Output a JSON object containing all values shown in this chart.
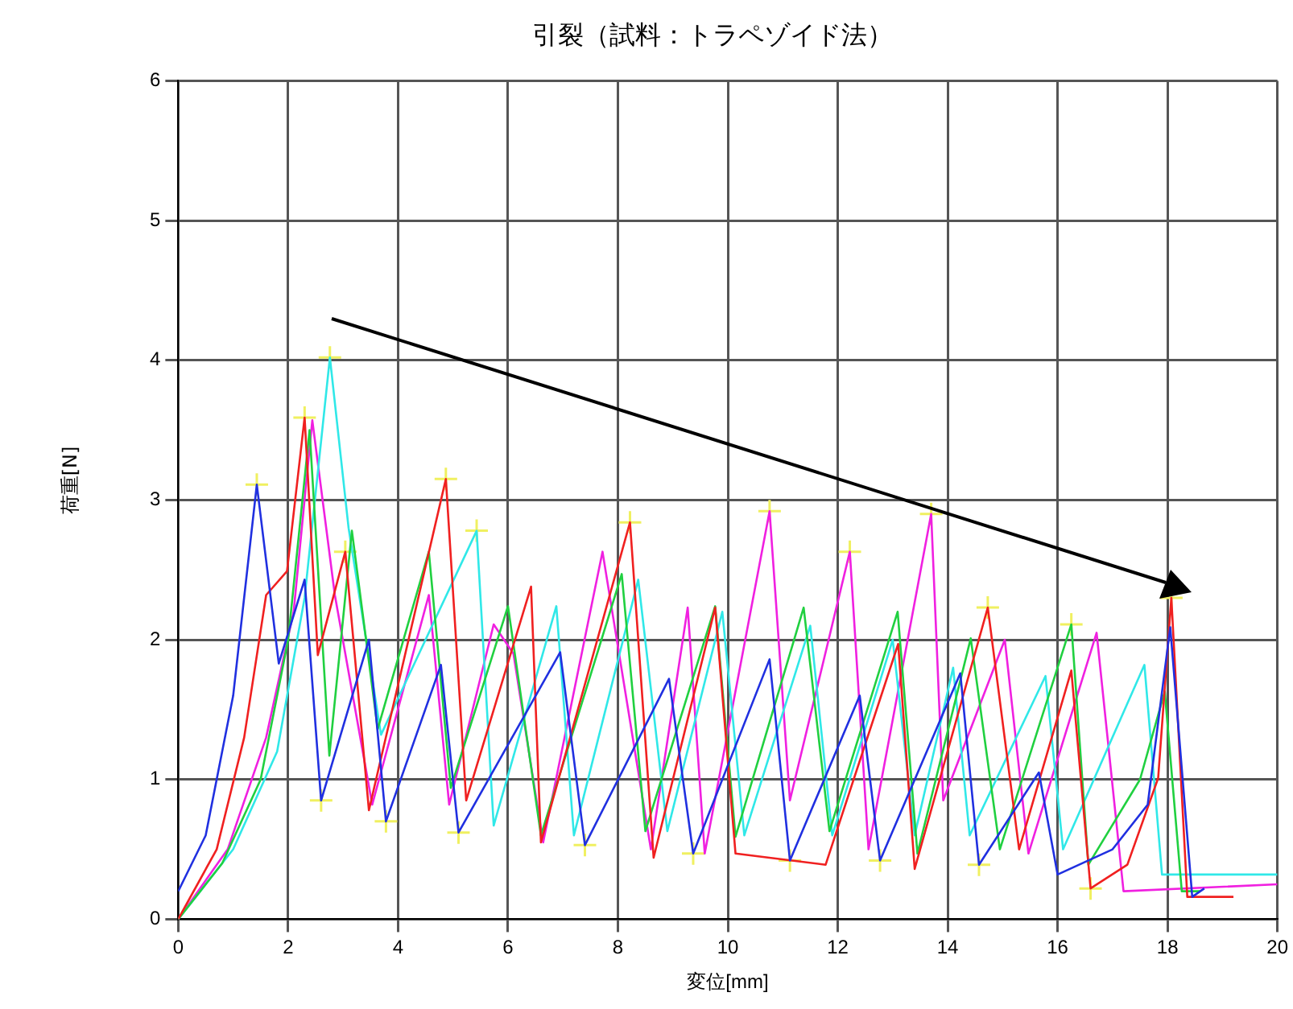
{
  "chart_data": {
    "type": "line",
    "title": "引裂（試料：トラペゾイド法）",
    "xlabel": "変位[mm]",
    "ylabel": "荷重[N]",
    "xlim": [
      0,
      20
    ],
    "xticks": [
      0,
      2,
      4,
      6,
      8,
      10,
      12,
      14,
      16,
      18,
      20
    ],
    "ylim": [
      0,
      6
    ],
    "yticks": [
      0,
      1,
      2,
      3,
      4,
      5,
      6
    ],
    "grid": true,
    "legend": false,
    "marker": "none",
    "line_style": "solid",
    "series": [
      {
        "color": "#2030e0",
        "x": [
          0,
          0.5,
          1.0,
          1.43,
          1.83,
          2.3,
          2.6,
          3.47,
          3.78,
          4.78,
          5.1,
          6.95,
          7.4,
          8.93,
          9.37,
          10.76,
          11.13,
          12.4,
          12.77,
          14.23,
          14.57,
          15.66,
          16.0,
          17.0,
          17.64,
          18.05,
          18.45,
          18.67
        ],
        "values": [
          0.2,
          0.6,
          1.6,
          3.11,
          1.83,
          2.43,
          0.85,
          2.0,
          0.7,
          1.82,
          0.62,
          1.91,
          0.53,
          1.72,
          0.47,
          1.86,
          0.42,
          1.6,
          0.42,
          1.76,
          0.39,
          1.05,
          0.32,
          0.5,
          0.82,
          2.09,
          0.16,
          0.22
        ]
      },
      {
        "color": "#f02020",
        "x": [
          0,
          0.7,
          1.2,
          1.6,
          1.98,
          2.3,
          2.54,
          3.04,
          3.47,
          4.87,
          5.24,
          6.42,
          6.6,
          8.22,
          8.65,
          9.77,
          10.14,
          11.78,
          13.1,
          13.4,
          14.73,
          15.3,
          16.25,
          16.6,
          17.27,
          17.83,
          18.07,
          18.36,
          19.2
        ],
        "values": [
          0,
          0.5,
          1.3,
          2.32,
          2.49,
          3.59,
          1.89,
          2.63,
          0.78,
          3.15,
          0.85,
          2.38,
          0.55,
          2.84,
          0.44,
          2.23,
          0.47,
          0.39,
          1.97,
          0.36,
          2.23,
          0.5,
          1.78,
          0.22,
          0.39,
          1.01,
          2.3,
          0.16,
          0.16
        ]
      },
      {
        "color": "#20d040",
        "x": [
          0,
          0.8,
          1.5,
          2.0,
          2.39,
          2.75,
          3.16,
          3.63,
          4.56,
          4.96,
          6.0,
          6.6,
          8.07,
          8.5,
          9.77,
          10.14,
          11.38,
          11.85,
          13.09,
          13.45,
          14.42,
          14.95,
          16.25,
          16.56,
          17.5,
          17.95,
          18.26,
          18.6
        ],
        "values": [
          0,
          0.4,
          1.0,
          2.0,
          3.5,
          1.17,
          2.78,
          1.36,
          2.63,
          0.94,
          2.24,
          0.6,
          2.47,
          0.63,
          2.24,
          0.59,
          2.23,
          0.63,
          2.2,
          0.47,
          2.01,
          0.5,
          2.11,
          0.39,
          1.0,
          1.63,
          0.2,
          0.2
        ]
      },
      {
        "color": "#30e8e8",
        "x": [
          0,
          1.0,
          1.8,
          2.3,
          2.76,
          3.1,
          3.69,
          5.43,
          5.74,
          6.88,
          7.2,
          8.37,
          8.9,
          9.9,
          10.3,
          11.5,
          11.9,
          13.0,
          13.4,
          14.1,
          14.4,
          15.78,
          16.1,
          17.58,
          17.9,
          20
        ],
        "values": [
          0,
          0.5,
          1.2,
          2.3,
          4.02,
          2.8,
          1.32,
          2.78,
          0.67,
          2.24,
          0.6,
          2.43,
          0.63,
          2.2,
          0.6,
          2.1,
          0.6,
          2.0,
          0.6,
          1.8,
          0.6,
          1.74,
          0.5,
          1.82,
          0.32,
          0.32
        ]
      },
      {
        "color": "#f020e0",
        "x": [
          0,
          0.9,
          1.6,
          2.1,
          2.44,
          2.85,
          3.53,
          4.56,
          4.93,
          5.74,
          6.1,
          6.64,
          7.72,
          8.6,
          9.27,
          9.58,
          10.76,
          11.13,
          12.22,
          12.56,
          13.7,
          13.92,
          15.04,
          15.47,
          16.71,
          17.2,
          20
        ],
        "values": [
          0,
          0.5,
          1.3,
          2.2,
          3.57,
          2.32,
          0.82,
          2.32,
          0.82,
          2.11,
          1.9,
          0.55,
          2.63,
          0.5,
          2.23,
          0.47,
          2.92,
          0.85,
          2.63,
          0.5,
          2.9,
          0.85,
          2.0,
          0.47,
          2.05,
          0.2,
          0.25
        ]
      },
      {
        "type": "scatter",
        "marker": "cross",
        "color": "#f0f060",
        "x": [
          1.43,
          2.3,
          2.76,
          3.04,
          4.87,
          5.43,
          8.22,
          10.76,
          12.22,
          13.7,
          14.73,
          16.25,
          18.07,
          2.6,
          3.78,
          5.1,
          7.4,
          9.37,
          11.13,
          12.77,
          14.57,
          16.6
        ],
        "values": [
          3.11,
          3.59,
          4.02,
          2.63,
          3.15,
          2.78,
          2.84,
          2.92,
          2.63,
          2.9,
          2.23,
          2.11,
          2.3,
          0.85,
          0.7,
          0.62,
          0.53,
          0.47,
          0.42,
          0.42,
          0.39,
          0.22
        ]
      }
    ]
  }
}
